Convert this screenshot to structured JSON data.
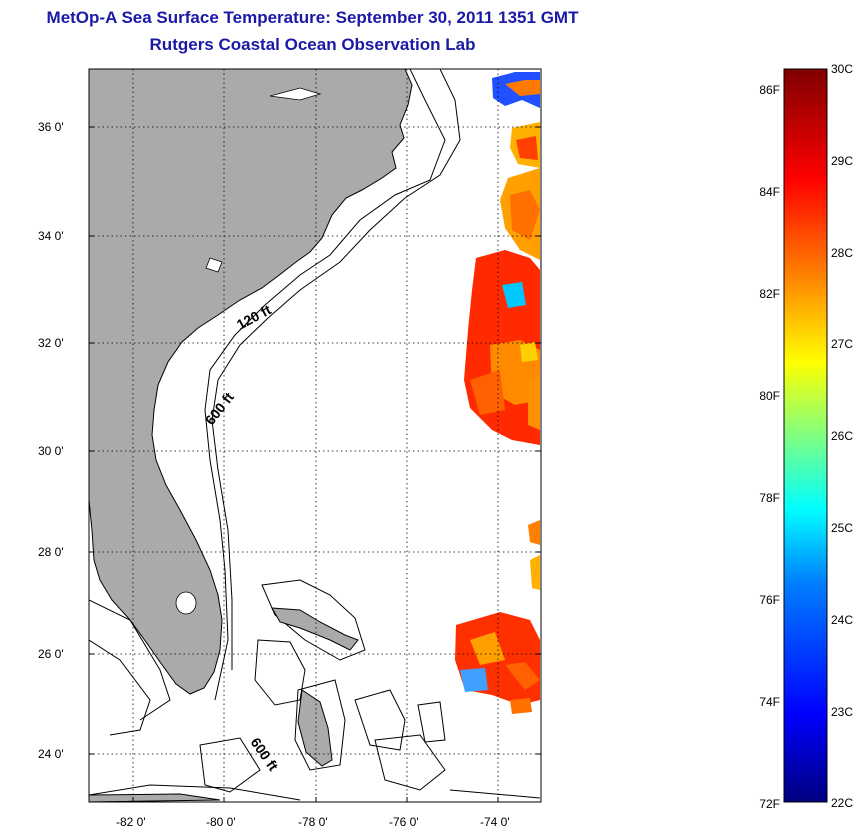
{
  "title_line1": "MetOp-A Sea Surface Temperature:  September 30, 2011 1351 GMT",
  "title_line2": "Rutgers Coastal Ocean Observation Lab",
  "lat_labels": [
    "36 0'",
    "34 0'",
    "32 0'",
    "30 0'",
    "28 0'",
    "26 0'",
    "24 0'"
  ],
  "lon_labels": [
    "-82 0'",
    "-80 0'",
    "-78 0'",
    "-76 0'",
    "-74 0'"
  ],
  "contour_labels": [
    "120 ft",
    "600 ft",
    "600 ft"
  ],
  "colorbar": {
    "f_labels": [
      "86F",
      "84F",
      "82F",
      "80F",
      "78F",
      "76F",
      "74F",
      "72F"
    ],
    "c_labels": [
      "30C",
      "29C",
      "28C",
      "27C",
      "26C",
      "25C",
      "24C",
      "23C",
      "22C"
    ],
    "range_c": [
      22,
      30
    ],
    "colors": [
      "#00007f",
      "#0000ff",
      "#0080ff",
      "#00ffff",
      "#80ff80",
      "#ffff00",
      "#ff8000",
      "#ff0000",
      "#7f0000"
    ]
  },
  "colors": {
    "land": "#aaaaaa",
    "ocean": "#ffffff",
    "title": "#1a1aa6"
  }
}
